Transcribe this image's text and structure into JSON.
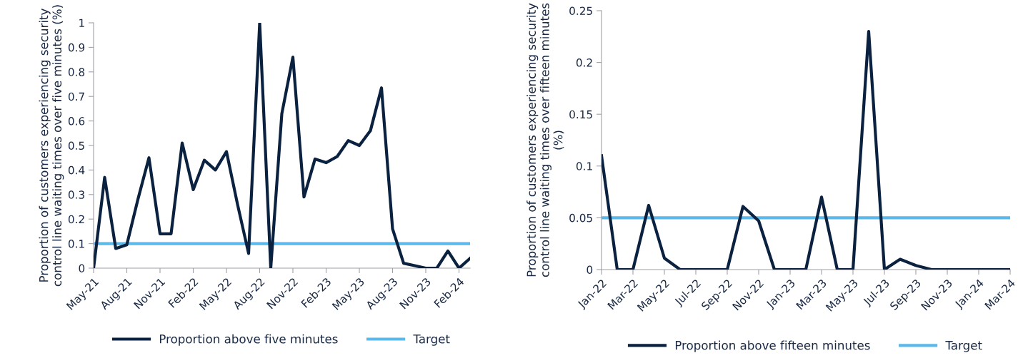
{
  "chart_data": [
    {
      "type": "line",
      "ylabel": "Proportion of customers experiencing security control line waiting times over five minutes (%)",
      "categories": [
        "May-21",
        null,
        null,
        "Aug-21",
        null,
        null,
        "Nov-21",
        null,
        null,
        "Feb-22",
        null,
        null,
        "May-22",
        null,
        null,
        "Aug-22",
        null,
        null,
        "Nov-22",
        null,
        null,
        "Feb-23",
        null,
        null,
        "May-23",
        null,
        null,
        "Aug-23",
        null,
        null,
        "Nov-23",
        null,
        null,
        "Feb-24",
        null
      ],
      "series": [
        {
          "name": "Proportion above five minutes",
          "color": "#0a2240",
          "values": [
            0,
            0.37,
            0.08,
            0.095,
            0.28,
            0.45,
            0.14,
            0.14,
            0.51,
            0.32,
            0.44,
            0.4,
            0.475,
            0.26,
            0.06,
            1.0,
            0,
            0.63,
            0.86,
            0.29,
            0.445,
            0.43,
            0.455,
            0.52,
            0.5,
            0.56,
            0.735,
            0.16,
            0.02,
            0.01,
            0,
            0,
            0.07,
            0,
            0.04
          ]
        }
      ],
      "ref_lines": [
        {
          "axis": "y",
          "value": 0.1,
          "label": "Target",
          "color": "#5bb8e8"
        }
      ],
      "ylim": [
        0,
        1
      ],
      "yticks": [
        0,
        0.1,
        0.2,
        0.3,
        0.4,
        0.5,
        0.6,
        0.7,
        0.8,
        0.9,
        1
      ],
      "grid": false,
      "legend": "bottom"
    },
    {
      "type": "line",
      "ylabel": "Proportion of customers experiencing security control line waiting times over fifteen minutes (%)",
      "categories": [
        "Jan-22",
        null,
        "Mar-22",
        null,
        "May-22",
        null,
        "Jul-22",
        null,
        "Sep-22",
        null,
        "Nov-22",
        null,
        "Jan-23",
        null,
        "Mar-23",
        null,
        "May-23",
        null,
        "Jul-23",
        null,
        "Sep-23",
        null,
        "Nov-23",
        null,
        "Jan-24",
        null,
        "Mar-24"
      ],
      "series": [
        {
          "name": "Proportion above fifteen minutes",
          "color": "#0a2240",
          "values": [
            0.11,
            0,
            0,
            0.062,
            0.011,
            0,
            0,
            0,
            0,
            0.061,
            0.047,
            0,
            0,
            0,
            0.07,
            0,
            0,
            0.23,
            0,
            0.01,
            0.004,
            0,
            0,
            0,
            0,
            0,
            0
          ]
        }
      ],
      "ref_lines": [
        {
          "axis": "y",
          "value": 0.05,
          "label": "Target",
          "color": "#5bb8e8"
        }
      ],
      "ylim": [
        0,
        0.25
      ],
      "yticks": [
        0,
        0.05,
        0.1,
        0.15,
        0.2,
        0.25
      ],
      "grid": false,
      "legend": "bottom"
    }
  ]
}
